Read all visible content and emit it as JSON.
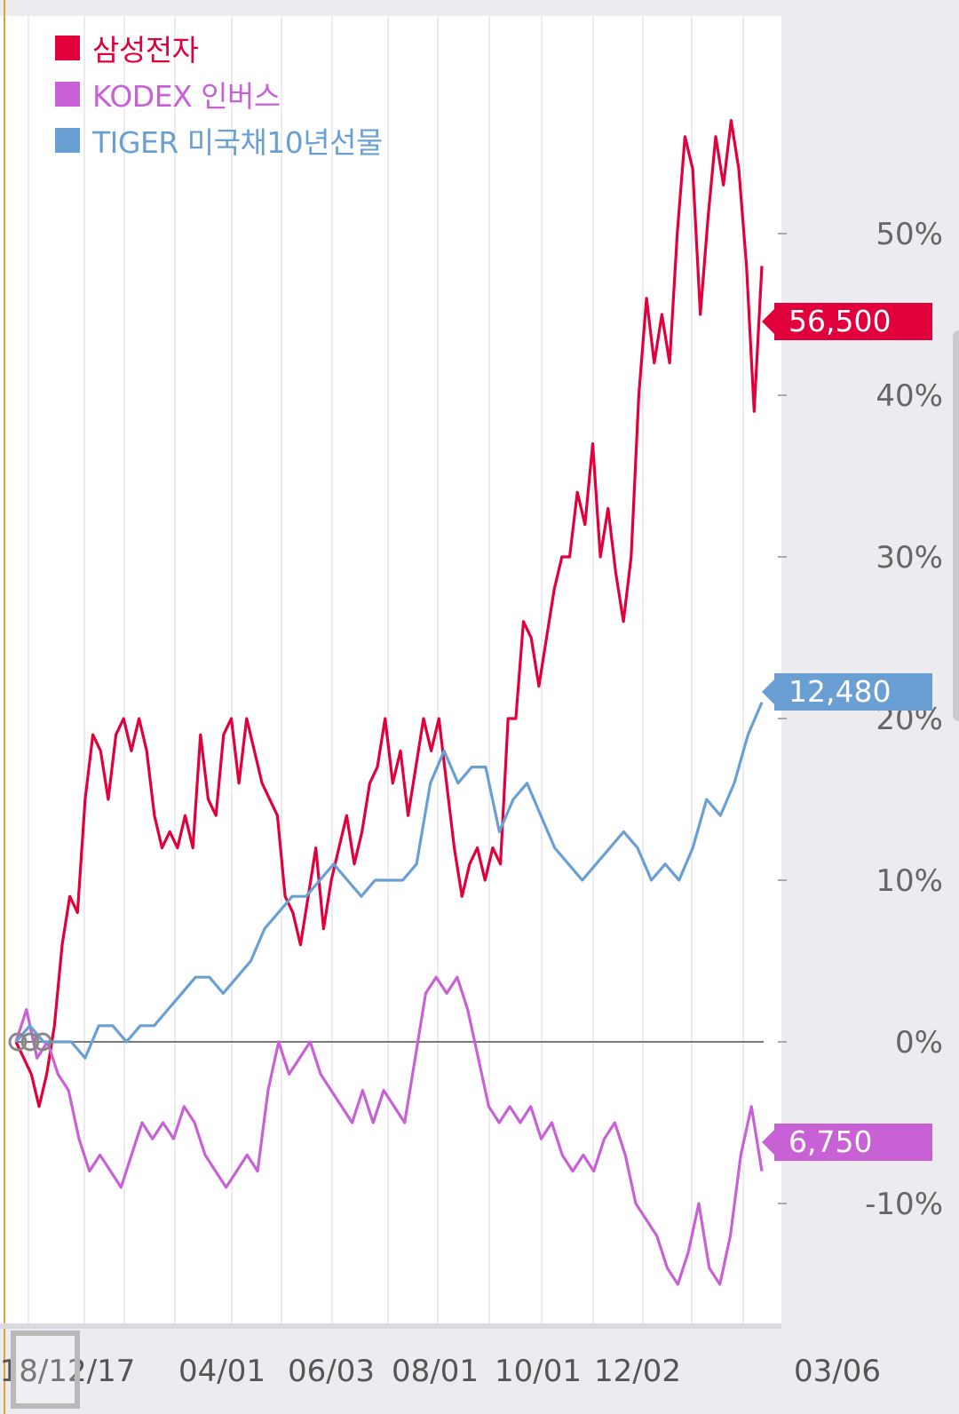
{
  "chart_data": {
    "type": "line",
    "title": "",
    "xlabel": "",
    "ylabel": "",
    "ylim": [
      -16,
      64
    ],
    "y_unit": "%",
    "y_ticks": [
      "50%",
      "40%",
      "30%",
      "20%",
      "10%",
      "0%",
      "-10%"
    ],
    "y_tick_values": [
      50,
      40,
      30,
      20,
      10,
      0,
      -10
    ],
    "x_ticks": [
      "18/12/17",
      "04/01",
      "06/03",
      "08/01",
      "10/01",
      "12/02",
      "03/06"
    ],
    "legend_position": "top-left",
    "grid": "vertical",
    "series": [
      {
        "name": "삼성전자",
        "color": "#e2003c",
        "last_value_label": "56,500",
        "points": [
          [
            0,
            0
          ],
          [
            2,
            -1
          ],
          [
            4,
            -2
          ],
          [
            6,
            -4
          ],
          [
            8,
            -2
          ],
          [
            10,
            1
          ],
          [
            12,
            6
          ],
          [
            14,
            9
          ],
          [
            16,
            8
          ],
          [
            18,
            15
          ],
          [
            20,
            19
          ],
          [
            22,
            18
          ],
          [
            24,
            15
          ],
          [
            26,
            19
          ],
          [
            28,
            20
          ],
          [
            30,
            18
          ],
          [
            32,
            20
          ],
          [
            34,
            18
          ],
          [
            36,
            14
          ],
          [
            38,
            12
          ],
          [
            40,
            13
          ],
          [
            42,
            12
          ],
          [
            44,
            14
          ],
          [
            46,
            12
          ],
          [
            48,
            19
          ],
          [
            50,
            15
          ],
          [
            52,
            14
          ],
          [
            54,
            19
          ],
          [
            56,
            20
          ],
          [
            58,
            16
          ],
          [
            60,
            20
          ],
          [
            62,
            18
          ],
          [
            64,
            16
          ],
          [
            66,
            15
          ],
          [
            68,
            14
          ],
          [
            70,
            9
          ],
          [
            72,
            8
          ],
          [
            74,
            6
          ],
          [
            76,
            9
          ],
          [
            78,
            12
          ],
          [
            80,
            7
          ],
          [
            82,
            10
          ],
          [
            84,
            12
          ],
          [
            86,
            14
          ],
          [
            88,
            11
          ],
          [
            90,
            13
          ],
          [
            92,
            16
          ],
          [
            94,
            17
          ],
          [
            96,
            20
          ],
          [
            98,
            16
          ],
          [
            100,
            18
          ],
          [
            102,
            14
          ],
          [
            104,
            17
          ],
          [
            106,
            20
          ],
          [
            108,
            18
          ],
          [
            110,
            20
          ],
          [
            112,
            16
          ],
          [
            114,
            12
          ],
          [
            116,
            9
          ],
          [
            118,
            11
          ],
          [
            120,
            12
          ],
          [
            122,
            10
          ],
          [
            124,
            12
          ],
          [
            126,
            11
          ],
          [
            128,
            20
          ],
          [
            130,
            20
          ],
          [
            132,
            26
          ],
          [
            134,
            25
          ],
          [
            136,
            22
          ],
          [
            138,
            25
          ],
          [
            140,
            28
          ],
          [
            142,
            30
          ],
          [
            144,
            30
          ],
          [
            146,
            34
          ],
          [
            148,
            32
          ],
          [
            150,
            37
          ],
          [
            152,
            30
          ],
          [
            154,
            33
          ],
          [
            156,
            29
          ],
          [
            158,
            26
          ],
          [
            160,
            30
          ],
          [
            162,
            40
          ],
          [
            164,
            46
          ],
          [
            166,
            42
          ],
          [
            168,
            45
          ],
          [
            170,
            42
          ],
          [
            172,
            50
          ],
          [
            174,
            56
          ],
          [
            176,
            54
          ],
          [
            178,
            45
          ],
          [
            180,
            51
          ],
          [
            182,
            56
          ],
          [
            184,
            53
          ],
          [
            186,
            57
          ],
          [
            188,
            54
          ],
          [
            190,
            48
          ],
          [
            192,
            39
          ],
          [
            194,
            48
          ]
        ]
      },
      {
        "name": "KODEX 인버스",
        "color": "#c961d6",
        "last_value_label": "6,750",
        "points": [
          [
            0,
            0
          ],
          [
            2,
            2
          ],
          [
            4,
            -1
          ],
          [
            6,
            0
          ],
          [
            8,
            -2
          ],
          [
            10,
            -3
          ],
          [
            12,
            -6
          ],
          [
            14,
            -8
          ],
          [
            16,
            -7
          ],
          [
            18,
            -8
          ],
          [
            20,
            -9
          ],
          [
            22,
            -7
          ],
          [
            24,
            -5
          ],
          [
            26,
            -6
          ],
          [
            28,
            -5
          ],
          [
            30,
            -6
          ],
          [
            32,
            -4
          ],
          [
            34,
            -5
          ],
          [
            36,
            -7
          ],
          [
            38,
            -8
          ],
          [
            40,
            -9
          ],
          [
            42,
            -8
          ],
          [
            44,
            -7
          ],
          [
            46,
            -8
          ],
          [
            48,
            -3
          ],
          [
            50,
            0
          ],
          [
            52,
            -2
          ],
          [
            54,
            -1
          ],
          [
            56,
            0
          ],
          [
            58,
            -2
          ],
          [
            60,
            -3
          ],
          [
            62,
            -4
          ],
          [
            64,
            -5
          ],
          [
            66,
            -3
          ],
          [
            68,
            -5
          ],
          [
            70,
            -3
          ],
          [
            72,
            -4
          ],
          [
            74,
            -5
          ],
          [
            76,
            -1
          ],
          [
            78,
            3
          ],
          [
            80,
            4
          ],
          [
            82,
            3
          ],
          [
            84,
            4
          ],
          [
            86,
            2
          ],
          [
            88,
            -1
          ],
          [
            90,
            -4
          ],
          [
            92,
            -5
          ],
          [
            94,
            -4
          ],
          [
            96,
            -5
          ],
          [
            98,
            -4
          ],
          [
            100,
            -6
          ],
          [
            102,
            -5
          ],
          [
            104,
            -7
          ],
          [
            106,
            -8
          ],
          [
            108,
            -7
          ],
          [
            110,
            -8
          ],
          [
            112,
            -6
          ],
          [
            114,
            -5
          ],
          [
            116,
            -7
          ],
          [
            118,
            -10
          ],
          [
            120,
            -11
          ],
          [
            122,
            -12
          ],
          [
            124,
            -14
          ],
          [
            126,
            -15
          ],
          [
            128,
            -13
          ],
          [
            130,
            -10
          ],
          [
            132,
            -14
          ],
          [
            134,
            -15
          ],
          [
            136,
            -12
          ],
          [
            138,
            -7
          ],
          [
            140,
            -4
          ],
          [
            142,
            -8
          ]
        ]
      },
      {
        "name": "TIGER 미국채10년선물",
        "color": "#6a9fd4",
        "last_value_label": "12,480",
        "points": [
          [
            0,
            0
          ],
          [
            2,
            1
          ],
          [
            4,
            0
          ],
          [
            6,
            0
          ],
          [
            8,
            0
          ],
          [
            10,
            -1
          ],
          [
            12,
            1
          ],
          [
            14,
            1
          ],
          [
            16,
            0
          ],
          [
            18,
            1
          ],
          [
            20,
            1
          ],
          [
            22,
            2
          ],
          [
            24,
            3
          ],
          [
            26,
            4
          ],
          [
            28,
            4
          ],
          [
            30,
            3
          ],
          [
            32,
            4
          ],
          [
            34,
            5
          ],
          [
            36,
            7
          ],
          [
            38,
            8
          ],
          [
            40,
            9
          ],
          [
            42,
            9
          ],
          [
            44,
            10
          ],
          [
            46,
            11
          ],
          [
            48,
            10
          ],
          [
            50,
            9
          ],
          [
            52,
            10
          ],
          [
            54,
            10
          ],
          [
            56,
            10
          ],
          [
            58,
            11
          ],
          [
            60,
            16
          ],
          [
            62,
            18
          ],
          [
            64,
            16
          ],
          [
            66,
            17
          ],
          [
            68,
            17
          ],
          [
            70,
            13
          ],
          [
            72,
            15
          ],
          [
            74,
            16
          ],
          [
            76,
            14
          ],
          [
            78,
            12
          ],
          [
            80,
            11
          ],
          [
            82,
            10
          ],
          [
            84,
            11
          ],
          [
            86,
            12
          ],
          [
            88,
            13
          ],
          [
            90,
            12
          ],
          [
            92,
            10
          ],
          [
            94,
            11
          ],
          [
            96,
            10
          ],
          [
            98,
            12
          ],
          [
            100,
            15
          ],
          [
            102,
            14
          ],
          [
            104,
            16
          ],
          [
            106,
            19
          ],
          [
            108,
            21
          ]
        ]
      }
    ]
  },
  "x_axis_ticks_series_map": "Samsung series spans 194 points, KODEX 142, TIGER 108; x normalized per series to 0..1 by last index"
}
